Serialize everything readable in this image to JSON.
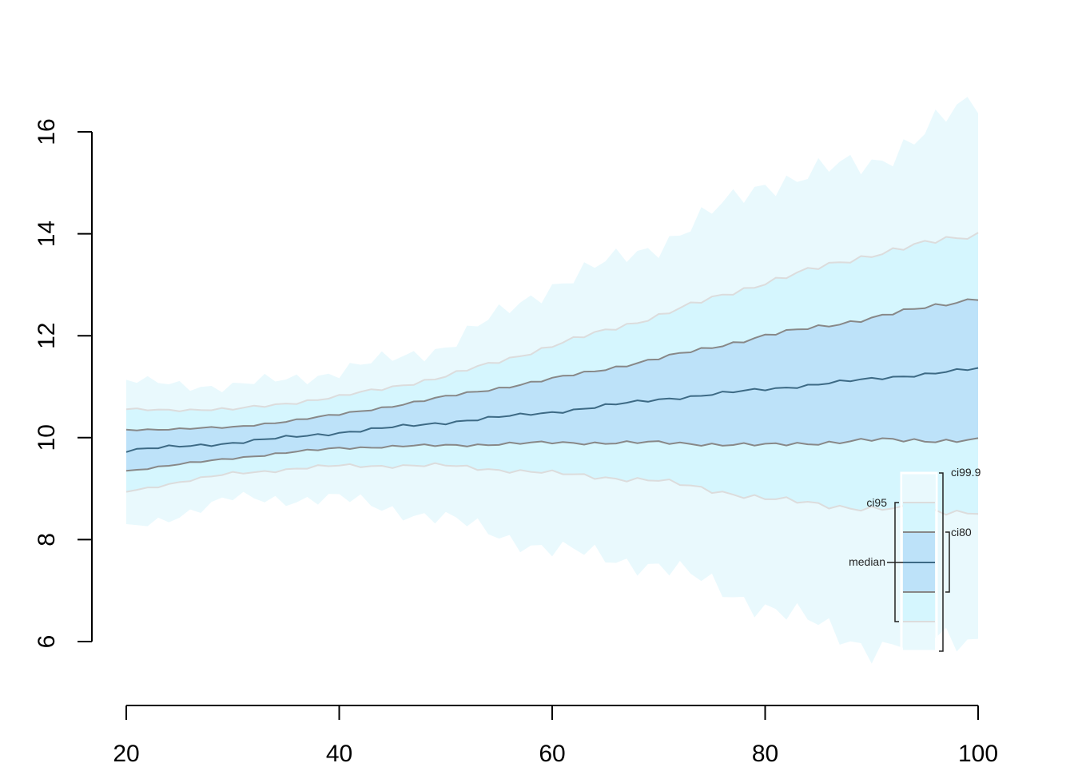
{
  "chart_data": {
    "type": "area",
    "title": "",
    "xlabel": "",
    "ylabel": "",
    "xlim": [
      20,
      100
    ],
    "ylim": [
      6,
      16
    ],
    "x_ticks": [
      20,
      40,
      60,
      80,
      100
    ],
    "y_ticks": [
      6,
      8,
      10,
      12,
      14,
      16
    ],
    "grid": false,
    "legend_position": "bottom-right",
    "x": [
      20,
      30,
      40,
      50,
      60,
      70,
      80,
      90,
      100
    ],
    "bands": [
      {
        "name": "ci99.9",
        "color": "#e9f9fd",
        "upper": [
          11.1,
          11.0,
          11.3,
          11.8,
          13.0,
          13.8,
          15.0,
          15.4,
          16.6
        ],
        "lower": [
          8.2,
          8.8,
          8.8,
          8.4,
          7.8,
          7.5,
          6.7,
          5.9,
          6.1
        ]
      },
      {
        "name": "ci95",
        "color": "#d5f6fe",
        "edge_color": "#dcdcdc",
        "upper": [
          10.55,
          10.55,
          10.8,
          11.2,
          11.8,
          12.4,
          13.05,
          13.6,
          14.0
        ],
        "lower": [
          8.95,
          9.3,
          9.45,
          9.45,
          9.3,
          9.15,
          8.8,
          8.6,
          8.55
        ]
      },
      {
        "name": "ci80",
        "color": "#bde2f9",
        "edge_color": "#888888",
        "upper": [
          10.15,
          10.2,
          10.45,
          10.8,
          11.15,
          11.55,
          12.0,
          12.35,
          12.75
        ],
        "lower": [
          9.35,
          9.6,
          9.8,
          9.85,
          9.9,
          9.9,
          9.85,
          9.95,
          9.95
        ]
      }
    ],
    "median": {
      "name": "median",
      "color": "#3d6a85",
      "values": [
        9.75,
        9.9,
        10.1,
        10.3,
        10.5,
        10.75,
        10.95,
        11.15,
        11.35
      ]
    },
    "legend": {
      "entries": [
        "ci99.9",
        "ci95",
        "ci80",
        "median"
      ]
    }
  }
}
